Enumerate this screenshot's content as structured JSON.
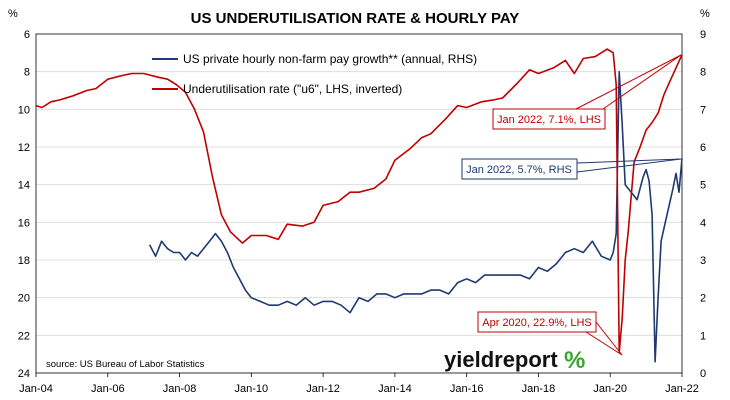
{
  "chart_data": {
    "type": "line",
    "title": "US UNDERUTILISATION RATE & HOURLY PAY",
    "left_axis": {
      "unit": "%",
      "range": [
        6,
        24
      ],
      "inverted": true,
      "ticks": [
        "6",
        "8",
        "10",
        "12",
        "14",
        "16",
        "18",
        "20",
        "22",
        "24"
      ]
    },
    "right_axis": {
      "unit": "%",
      "range": [
        0,
        9
      ],
      "ticks": [
        "0",
        "1",
        "2",
        "3",
        "4",
        "5",
        "6",
        "7",
        "8",
        "9"
      ]
    },
    "x_axis": {
      "range": [
        "2004-01",
        "2022-01"
      ],
      "ticks": [
        "Jan-04",
        "Jan-06",
        "Jan-08",
        "Jan-10",
        "Jan-12",
        "Jan-14",
        "Jan-16",
        "Jan-18",
        "Jan-20",
        "Jan-22"
      ]
    },
    "grid": "horizontal",
    "legend_position": "top-left",
    "series": [
      {
        "name": "US private hourly non-farm pay growth** (annual, RHS)",
        "axis": "right",
        "color": "#1f3a70",
        "points": [
          [
            "2007-03",
            3.4
          ],
          [
            "2007-05",
            3.1
          ],
          [
            "2007-07",
            3.5
          ],
          [
            "2007-09",
            3.3
          ],
          [
            "2007-11",
            3.2
          ],
          [
            "2008-01",
            3.2
          ],
          [
            "2008-03",
            3.0
          ],
          [
            "2008-05",
            3.2
          ],
          [
            "2008-07",
            3.1
          ],
          [
            "2008-09",
            3.3
          ],
          [
            "2008-11",
            3.5
          ],
          [
            "2009-01",
            3.7
          ],
          [
            "2009-03",
            3.5
          ],
          [
            "2009-05",
            3.2
          ],
          [
            "2009-07",
            2.8
          ],
          [
            "2009-09",
            2.5
          ],
          [
            "2009-11",
            2.2
          ],
          [
            "2010-01",
            2.0
          ],
          [
            "2010-04",
            1.9
          ],
          [
            "2010-07",
            1.8
          ],
          [
            "2010-10",
            1.8
          ],
          [
            "2011-01",
            1.9
          ],
          [
            "2011-04",
            1.8
          ],
          [
            "2011-07",
            2.0
          ],
          [
            "2011-10",
            1.8
          ],
          [
            "2012-01",
            1.9
          ],
          [
            "2012-04",
            1.9
          ],
          [
            "2012-07",
            1.8
          ],
          [
            "2012-10",
            1.6
          ],
          [
            "2013-01",
            2.0
          ],
          [
            "2013-04",
            1.9
          ],
          [
            "2013-07",
            2.1
          ],
          [
            "2013-10",
            2.1
          ],
          [
            "2014-01",
            2.0
          ],
          [
            "2014-04",
            2.1
          ],
          [
            "2014-07",
            2.1
          ],
          [
            "2014-10",
            2.1
          ],
          [
            "2015-01",
            2.2
          ],
          [
            "2015-04",
            2.2
          ],
          [
            "2015-07",
            2.1
          ],
          [
            "2015-10",
            2.4
          ],
          [
            "2016-01",
            2.5
          ],
          [
            "2016-04",
            2.4
          ],
          [
            "2016-07",
            2.6
          ],
          [
            "2016-10",
            2.6
          ],
          [
            "2017-01",
            2.6
          ],
          [
            "2017-04",
            2.6
          ],
          [
            "2017-07",
            2.6
          ],
          [
            "2017-10",
            2.5
          ],
          [
            "2018-01",
            2.8
          ],
          [
            "2018-04",
            2.7
          ],
          [
            "2018-07",
            2.9
          ],
          [
            "2018-10",
            3.2
          ],
          [
            "2019-01",
            3.3
          ],
          [
            "2019-04",
            3.2
          ],
          [
            "2019-07",
            3.5
          ],
          [
            "2019-10",
            3.1
          ],
          [
            "2020-01",
            3.0
          ],
          [
            "2020-02",
            3.2
          ],
          [
            "2020-03",
            3.7
          ],
          [
            "2020-04",
            8.0
          ],
          [
            "2020-05",
            6.6
          ],
          [
            "2020-06",
            5.0
          ],
          [
            "2020-08",
            4.8
          ],
          [
            "2020-10",
            4.6
          ],
          [
            "2020-12",
            5.2
          ],
          [
            "2021-01",
            5.4
          ],
          [
            "2021-02",
            5.1
          ],
          [
            "2021-03",
            4.2
          ],
          [
            "2021-04",
            0.3
          ],
          [
            "2021-05",
            2.0
          ],
          [
            "2021-06",
            3.5
          ],
          [
            "2021-08",
            4.2
          ],
          [
            "2021-10",
            4.9
          ],
          [
            "2021-11",
            5.3
          ],
          [
            "2021-12",
            4.8
          ],
          [
            "2022-01",
            5.7
          ]
        ]
      },
      {
        "name": "Underutilisation rate (\"u6\", LHS, inverted)",
        "axis": "left",
        "color": "#c00000",
        "points": [
          [
            "2004-01",
            9.8
          ],
          [
            "2004-03",
            9.9
          ],
          [
            "2004-06",
            9.6
          ],
          [
            "2004-09",
            9.5
          ],
          [
            "2005-01",
            9.3
          ],
          [
            "2005-06",
            9.0
          ],
          [
            "2005-09",
            8.9
          ],
          [
            "2006-01",
            8.4
          ],
          [
            "2006-06",
            8.2
          ],
          [
            "2006-09",
            8.1
          ],
          [
            "2007-01",
            8.1
          ],
          [
            "2007-06",
            8.3
          ],
          [
            "2007-09",
            8.4
          ],
          [
            "2007-12",
            8.7
          ],
          [
            "2008-03",
            9.1
          ],
          [
            "2008-06",
            10.0
          ],
          [
            "2008-09",
            11.2
          ],
          [
            "2008-12",
            13.6
          ],
          [
            "2009-03",
            15.6
          ],
          [
            "2009-06",
            16.5
          ],
          [
            "2009-10",
            17.1
          ],
          [
            "2010-01",
            16.7
          ],
          [
            "2010-06",
            16.7
          ],
          [
            "2010-10",
            16.9
          ],
          [
            "2011-01",
            16.1
          ],
          [
            "2011-06",
            16.2
          ],
          [
            "2011-10",
            16.0
          ],
          [
            "2012-01",
            15.1
          ],
          [
            "2012-06",
            14.9
          ],
          [
            "2012-10",
            14.4
          ],
          [
            "2013-01",
            14.4
          ],
          [
            "2013-06",
            14.2
          ],
          [
            "2013-10",
            13.7
          ],
          [
            "2014-01",
            12.7
          ],
          [
            "2014-06",
            12.1
          ],
          [
            "2014-10",
            11.5
          ],
          [
            "2015-01",
            11.3
          ],
          [
            "2015-06",
            10.5
          ],
          [
            "2015-10",
            9.8
          ],
          [
            "2016-01",
            9.9
          ],
          [
            "2016-06",
            9.6
          ],
          [
            "2016-10",
            9.5
          ],
          [
            "2017-01",
            9.4
          ],
          [
            "2017-06",
            8.6
          ],
          [
            "2017-10",
            7.9
          ],
          [
            "2018-01",
            8.1
          ],
          [
            "2018-06",
            7.8
          ],
          [
            "2018-10",
            7.4
          ],
          [
            "2019-01",
            8.1
          ],
          [
            "2019-04",
            7.3
          ],
          [
            "2019-08",
            7.2
          ],
          [
            "2019-12",
            6.8
          ],
          [
            "2020-02",
            7.0
          ],
          [
            "2020-03",
            8.7
          ],
          [
            "2020-04",
            22.9
          ],
          [
            "2020-05",
            21.1
          ],
          [
            "2020-06",
            18.0
          ],
          [
            "2020-07",
            16.5
          ],
          [
            "2020-09",
            12.8
          ],
          [
            "2020-11",
            12.0
          ],
          [
            "2021-01",
            11.1
          ],
          [
            "2021-03",
            10.7
          ],
          [
            "2021-05",
            10.2
          ],
          [
            "2021-07",
            9.2
          ],
          [
            "2021-09",
            8.5
          ],
          [
            "2021-11",
            7.8
          ],
          [
            "2022-01",
            7.1
          ]
        ]
      }
    ],
    "annotations": [
      {
        "text": "Jan 2022, 7.1%, LHS",
        "color": "#c00000",
        "target": [
          "2022-01",
          7.1
        ]
      },
      {
        "text": "Jan 2022, 5.7%, RHS",
        "color": "#1f3a70",
        "target": [
          "2022-01",
          5.7
        ]
      },
      {
        "text": "Apr 2020, 22.9%, LHS",
        "color": "#c00000",
        "target": [
          "2020-04",
          22.9
        ]
      }
    ],
    "source": "source: US Bureau of Labor Statistics"
  },
  "branding": {
    "name": "yieldreport",
    "mark": "%"
  },
  "colors": {
    "pay": "#1f3a70",
    "underutil": "#c00000",
    "brand_green": "#3aa535",
    "grid": "#d9d9d9"
  }
}
